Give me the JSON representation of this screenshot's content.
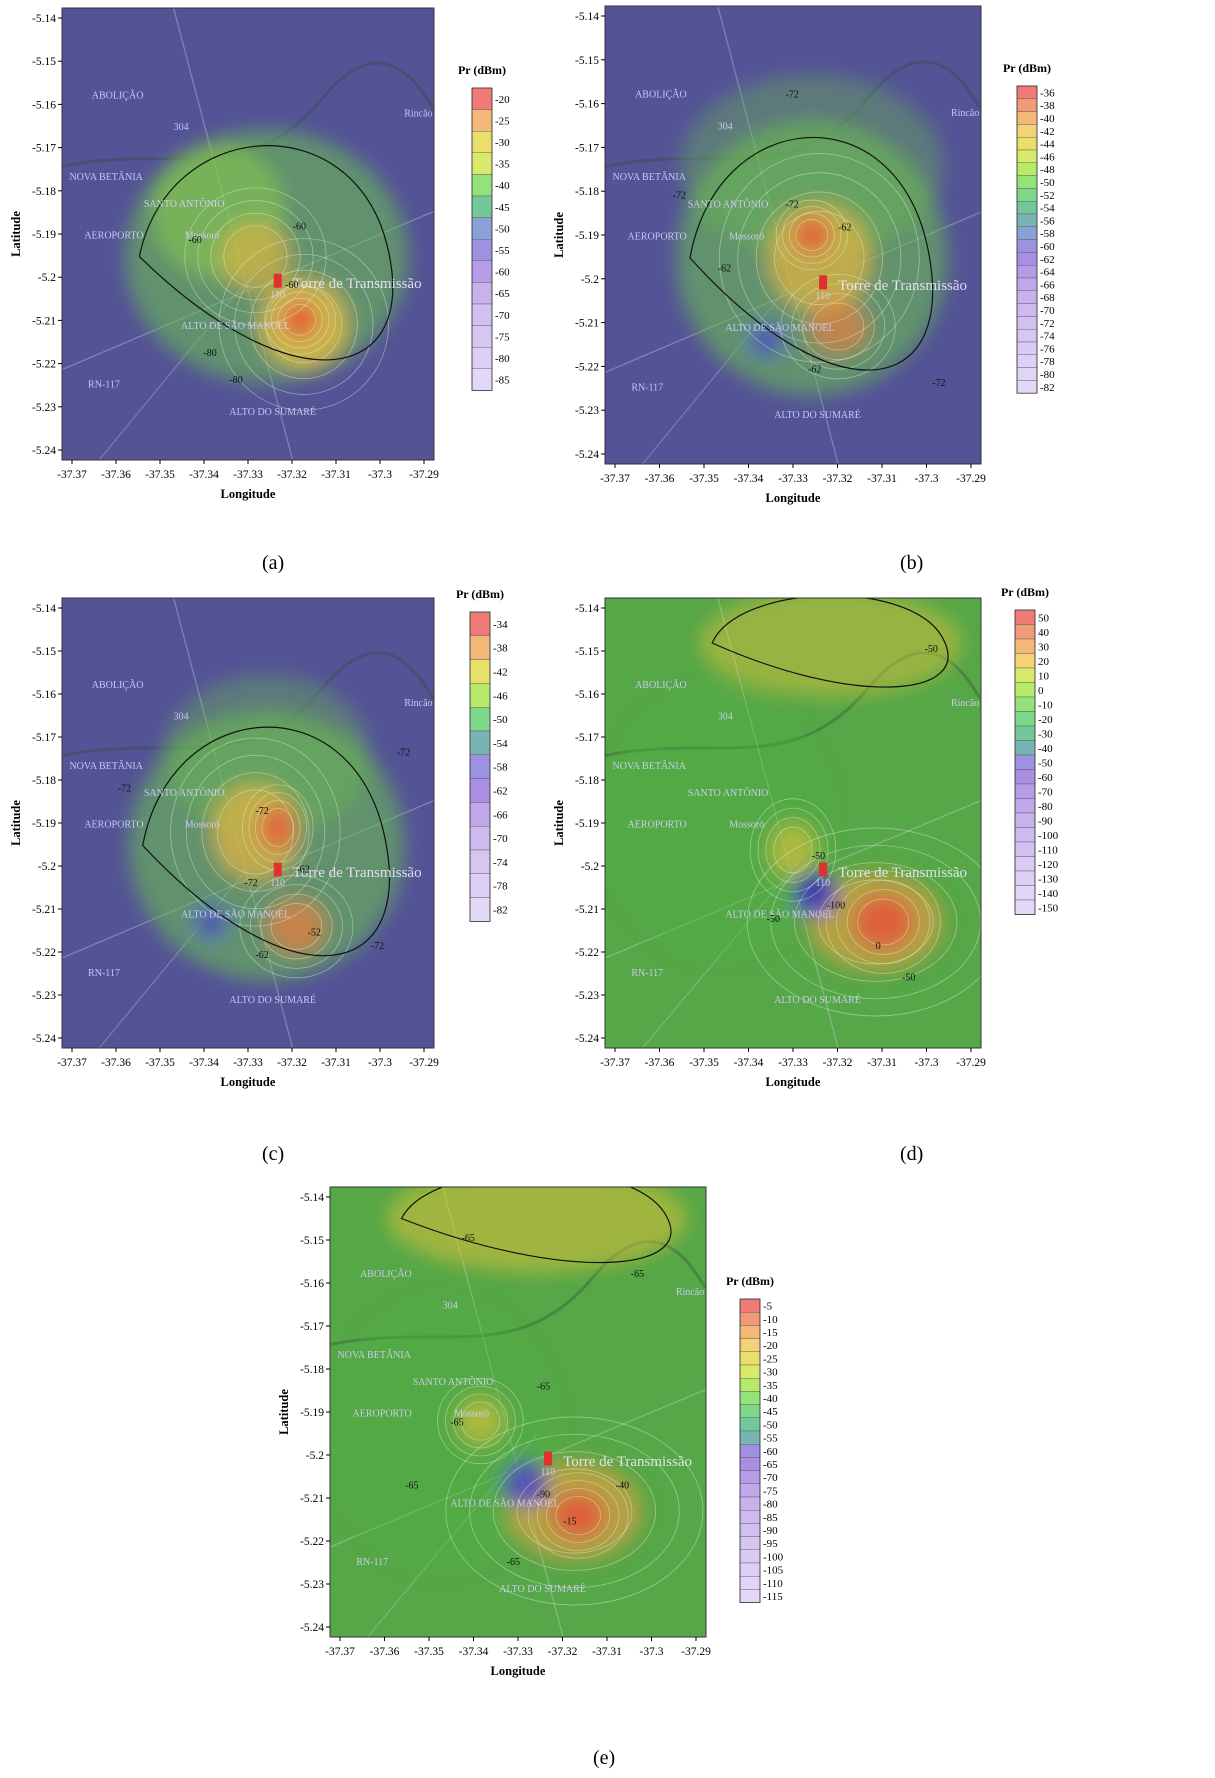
{
  "panels": [
    {
      "id": "a",
      "label": "(a)",
      "xlabel": "Longitude",
      "ylabel": "Latitude",
      "legend_title": "Pr (dBm)",
      "legend_values": [
        "-20",
        "-25",
        "-30",
        "-35",
        "-40",
        "-45",
        "-50",
        "-55",
        "-60",
        "-65",
        "-70",
        "-75",
        "-80",
        "-85"
      ],
      "contour_labels": [
        "-60",
        "-60",
        "-60",
        "-80",
        "-80"
      ],
      "map_labels": [
        "ABOLIÇÃO",
        "NOVA BETÂNIA",
        "SANTO ANTÔNIO",
        "AEROPORTO",
        "Mossoró",
        "Torre de Transmissão",
        "ALTO DE SÃO MANOEL",
        "ALTO DO SUMARÉ",
        "Rincão",
        "RN-117",
        "304",
        "110"
      ]
    },
    {
      "id": "b",
      "label": "(b)",
      "xlabel": "Longitude",
      "ylabel": "Latitude",
      "legend_title": "Pr (dBm)",
      "legend_values": [
        "-36",
        "-38",
        "-40",
        "-42",
        "-44",
        "-46",
        "-48",
        "-50",
        "-52",
        "-54",
        "-56",
        "-58",
        "-60",
        "-62",
        "-64",
        "-66",
        "-68",
        "-70",
        "-72",
        "-74",
        "-76",
        "-78",
        "-80",
        "-82"
      ],
      "contour_labels": [
        "-72",
        "-72",
        "-72",
        "-62",
        "-62",
        "-62",
        "-72"
      ],
      "map_labels": [
        "ABOLIÇÃO",
        "NOVA BETÂNIA",
        "SANTO ANTÔNIO",
        "AEROPORTO",
        "Mossoró",
        "Torre de Transmissão",
        "ALTO DE SÃO MANOEL",
        "ALTO DO SUMARÉ",
        "Rincão",
        "RN-117",
        "304",
        "110"
      ]
    },
    {
      "id": "c",
      "label": "(c)",
      "xlabel": "Longitude",
      "ylabel": "Latitude",
      "legend_title": "Pr (dBm)",
      "legend_values": [
        "-34",
        "-38",
        "-42",
        "-46",
        "-50",
        "-54",
        "-58",
        "-62",
        "-66",
        "-70",
        "-74",
        "-78",
        "-82"
      ],
      "contour_labels": [
        "-72",
        "-72",
        "-72",
        "-62",
        "-52",
        "-62",
        "-72",
        "-72"
      ],
      "map_labels": [
        "ABOLIÇÃO",
        "NOVA BETÂNIA",
        "SANTO ANTÔNIO",
        "AEROPORTO",
        "Mossoró",
        "Torre de Transmissão",
        "ALTO DE SÃO MANOEL",
        "ALTO DO SUMARÉ",
        "Rincão",
        "RN-117",
        "304",
        "110"
      ]
    },
    {
      "id": "d",
      "label": "(d)",
      "xlabel": "Longitude",
      "ylabel": "Latitude",
      "legend_title": "Pr (dBm)",
      "legend_values": [
        "50",
        "40",
        "30",
        "20",
        "10",
        "0",
        "-10",
        "-20",
        "-30",
        "-40",
        "-50",
        "-60",
        "-70",
        "-80",
        "-90",
        "-100",
        "-110",
        "-120",
        "-130",
        "-140",
        "-150"
      ],
      "contour_labels": [
        "-50",
        "-50",
        "-50",
        "-100",
        "0",
        "-50"
      ],
      "map_labels": [
        "ABOLIÇÃO",
        "NOVA BETÂNIA",
        "SANTO ANTÔNIO",
        "AEROPORTO",
        "Mossoró",
        "Torre de Transmissão",
        "ALTO DE SÃO MANOEL",
        "ALTO DO SUMARÉ",
        "Rincão",
        "RN-117",
        "304",
        "110"
      ]
    },
    {
      "id": "e",
      "label": "(e)",
      "xlabel": "Longitude",
      "ylabel": "Latitude",
      "legend_title": "Pr (dBm)",
      "legend_values": [
        "-5",
        "-10",
        "-15",
        "-20",
        "-25",
        "-30",
        "-35",
        "-40",
        "-45",
        "-50",
        "-55",
        "-60",
        "-65",
        "-70",
        "-75",
        "-80",
        "-85",
        "-90",
        "-95",
        "-100",
        "-105",
        "-110",
        "-115"
      ],
      "contour_labels": [
        "-65",
        "-65",
        "-65",
        "-65",
        "-65",
        "-40",
        "-15",
        "-90",
        "-65"
      ],
      "map_labels": [
        "ABOLIÇÃO",
        "NOVA BETÂNIA",
        "SANTO ANTÔNIO",
        "AEROPORTO",
        "Mossoró",
        "Torre de Transmissão",
        "ALTO DE SÃO MANOEL",
        "ALTO DO SUMARÉ",
        "Rincão",
        "RN-117",
        "304",
        "110"
      ]
    }
  ],
  "x_ticks": [
    "-37.37",
    "-37.36",
    "-37.35",
    "-37.34",
    "-37.33",
    "-37.32",
    "-37.31",
    "-37.3",
    "-37.29"
  ],
  "y_ticks": [
    "-5.14",
    "-5.15",
    "-5.16",
    "-5.17",
    "-5.18",
    "-5.19",
    "-5.2",
    "-5.21",
    "-5.22",
    "-5.23",
    "-5.24"
  ],
  "colors": {
    "satellite_dark": "#3b4a3c",
    "base_purple": "#5a56b0",
    "base_green": "#5ec24a",
    "hot": "#e8553c",
    "warm": "#e7c43a",
    "cold": "#4a48c8"
  }
}
